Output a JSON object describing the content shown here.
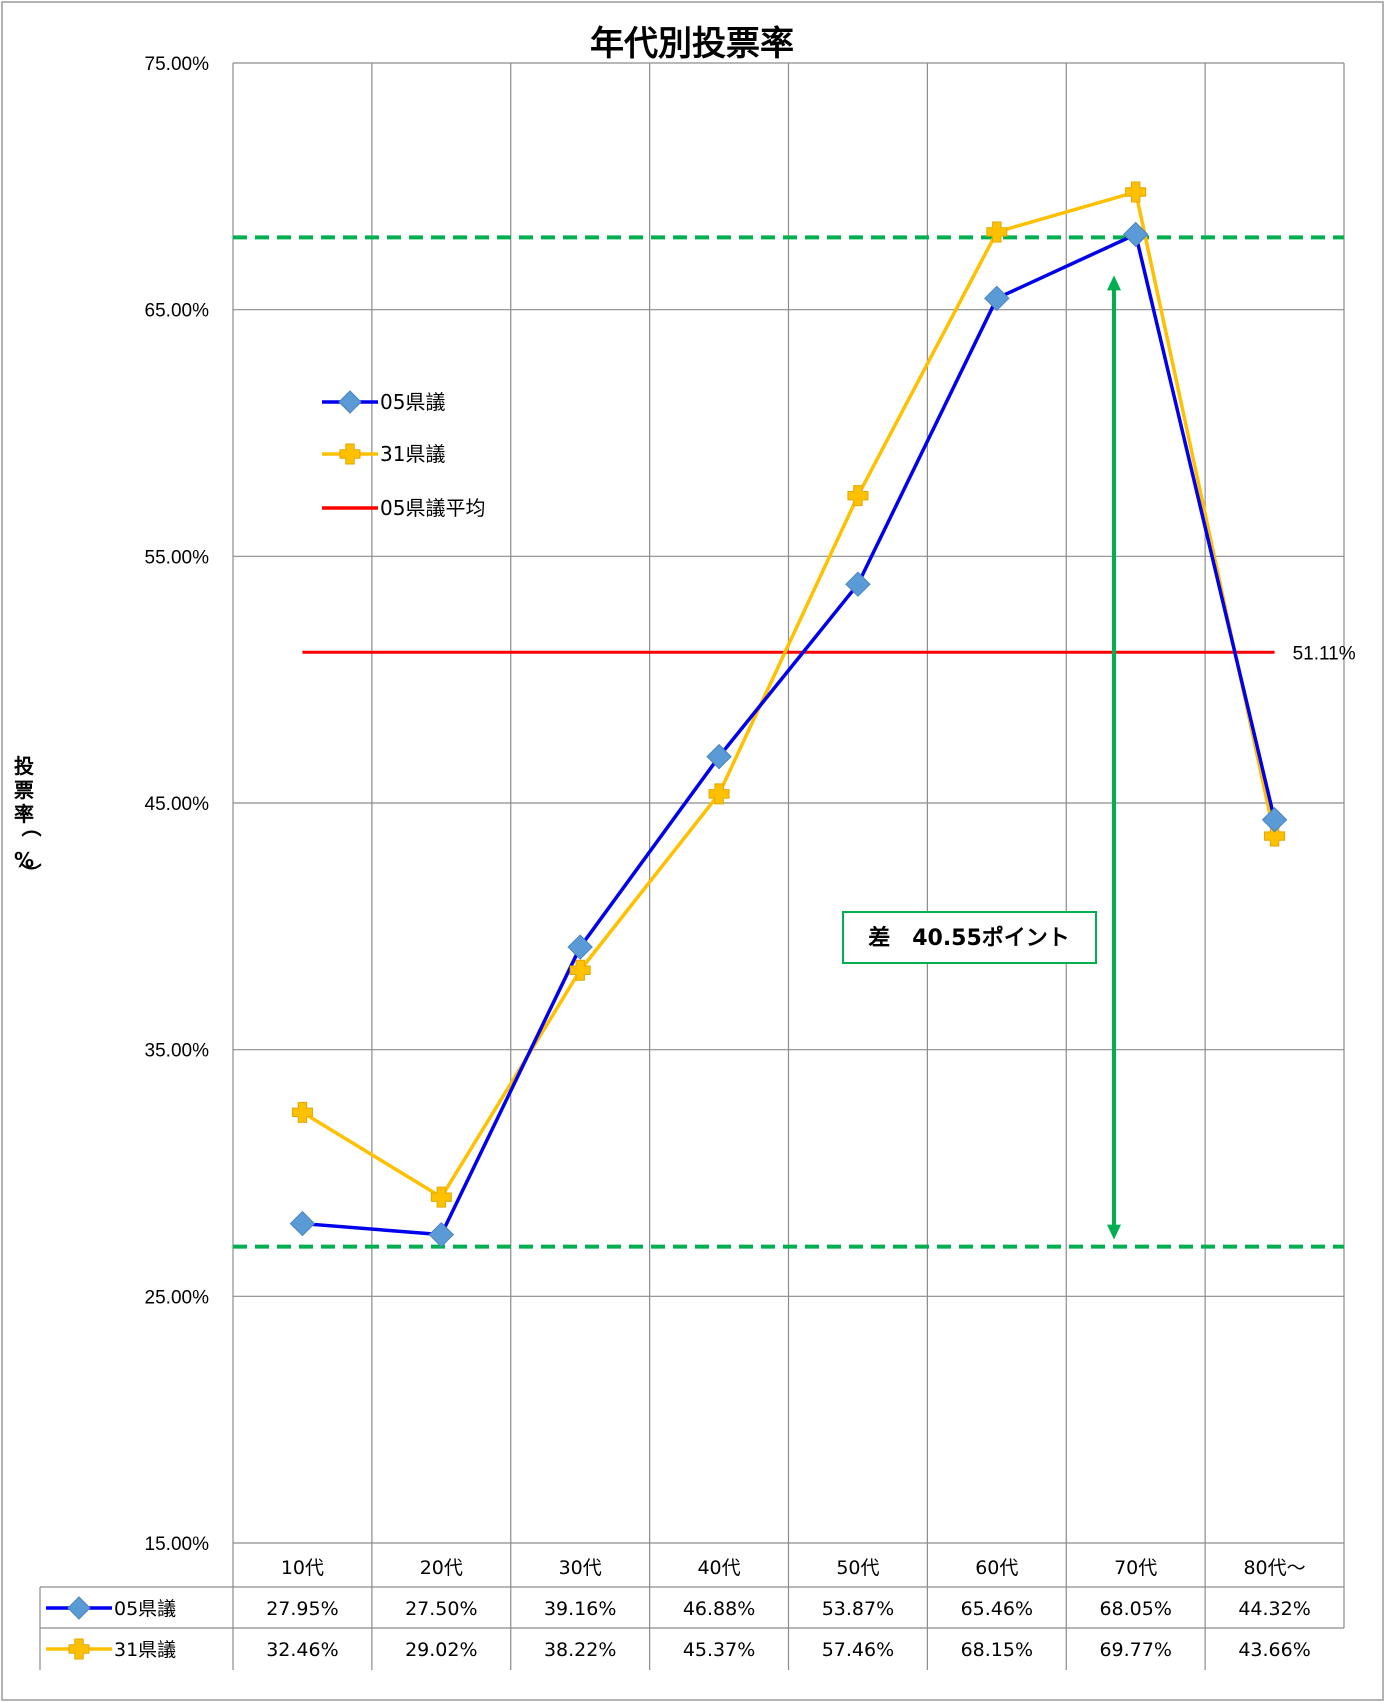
{
  "chart_data": {
    "type": "line",
    "title": "年代別投票率",
    "ylabel": "投票率（%）",
    "xlabel": "",
    "categories": [
      "10代",
      "20代",
      "30代",
      "40代",
      "50代",
      "60代",
      "70代",
      "80代～"
    ],
    "yticks": [
      "15.00%",
      "25.00%",
      "35.00%",
      "45.00%",
      "55.00%",
      "65.00%",
      "75.00%"
    ],
    "ylim": [
      15,
      75
    ],
    "grid": true,
    "legend": "left",
    "series": [
      {
        "name": "05県議",
        "values": [
          27.95,
          27.5,
          39.16,
          46.88,
          53.87,
          65.46,
          68.05,
          44.32
        ],
        "labels": [
          "27.95%",
          "27.50%",
          "39.16%",
          "46.88%",
          "53.87%",
          "65.46%",
          "68.05%",
          "44.32%"
        ],
        "color": "#0000ee",
        "marker_color": "#5b9bd5",
        "marker": "diamond"
      },
      {
        "name": "31県議",
        "values": [
          32.46,
          29.02,
          38.22,
          45.37,
          57.46,
          68.15,
          69.77,
          43.66
        ],
        "labels": [
          "32.46%",
          "29.02%",
          "38.22%",
          "45.37%",
          "57.46%",
          "68.15%",
          "69.77%",
          "43.66%"
        ],
        "color": "#ffc000",
        "marker_color": "#ffc000",
        "marker": "cross"
      },
      {
        "name": "05県議平均",
        "value": 51.11,
        "label": "51.11%",
        "color": "#ff0000"
      }
    ],
    "reference_lines": {
      "values": [
        68.05,
        27.5
      ],
      "color": "#00b050"
    },
    "annotation": {
      "text": "差　40.55ポイント",
      "from": 27.5,
      "to": 68.05,
      "color": "#00b050"
    }
  }
}
